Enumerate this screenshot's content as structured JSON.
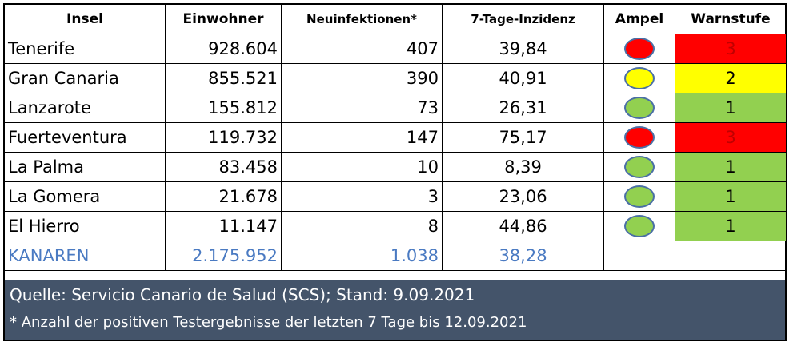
{
  "headers": {
    "insel": "Insel",
    "einwohner": "Einwohner",
    "neuinfektionen": "Neuinfektionen*",
    "inzidenz": "7-Tage-Inzidenz",
    "ampel": "Ampel",
    "warnstufe": "Warnstufe"
  },
  "colors": {
    "red": "#ff0000",
    "yellow": "#ffff00",
    "green": "#92d050",
    "total_text": "#4a7ac2",
    "footer_bg": "#44546a",
    "ampel_border": "#4a6fa5"
  },
  "rows": [
    {
      "insel": "Tenerife",
      "einwohner": "928.604",
      "neuinfektionen": "407",
      "inzidenz": "39,84",
      "ampel": "red",
      "warnstufe": "3"
    },
    {
      "insel": "Gran Canaria",
      "einwohner": "855.521",
      "neuinfektionen": "390",
      "inzidenz": "40,91",
      "ampel": "yellow",
      "warnstufe": "2"
    },
    {
      "insel": "Lanzarote",
      "einwohner": "155.812",
      "neuinfektionen": "73",
      "inzidenz": "26,31",
      "ampel": "green",
      "warnstufe": "1"
    },
    {
      "insel": "Fuerteventura",
      "einwohner": "119.732",
      "neuinfektionen": "147",
      "inzidenz": "75,17",
      "ampel": "red",
      "warnstufe": "3"
    },
    {
      "insel": "La Palma",
      "einwohner": "83.458",
      "neuinfektionen": "10",
      "inzidenz": "8,39",
      "ampel": "green",
      "warnstufe": "1"
    },
    {
      "insel": "La Gomera",
      "einwohner": "21.678",
      "neuinfektionen": "3",
      "inzidenz": "23,06",
      "ampel": "green",
      "warnstufe": "1"
    },
    {
      "insel": "El Hierro",
      "einwohner": "11.147",
      "neuinfektionen": "8",
      "inzidenz": "44,86",
      "ampel": "green",
      "warnstufe": "1"
    }
  ],
  "total": {
    "insel": "KANAREN",
    "einwohner": "2.175.952",
    "neuinfektionen": "1.038",
    "inzidenz": "38,28"
  },
  "footer": {
    "source": "Quelle: Servicio Canario de Salud (SCS); Stand: 9.09.2021",
    "note": "* Anzahl der positiven Testergebnisse der letzten 7 Tage bis 12.09.2021"
  }
}
